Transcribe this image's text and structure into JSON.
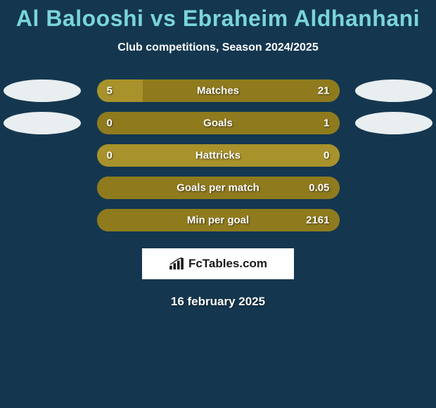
{
  "title": "Al Balooshi vs Ebraheim Aldhanhani",
  "subtitle": "Club competitions, Season 2024/2025",
  "date": "16 february 2025",
  "logo_text": "FcTables.com",
  "colors": {
    "background": "#14374f",
    "title": "#7ad5d8",
    "bar_base": "#a8922b",
    "bar_olive_dark": "#8f7b1e",
    "ellipse_white": "#e9eef0",
    "text_white": "#ffffff"
  },
  "rows": [
    {
      "label": "Matches",
      "left_val": "5",
      "right_val": "21",
      "left_pct": 19,
      "right_pct": 81,
      "left_fill": "#a8922b",
      "right_fill": "#8f7b1e",
      "show_ellipses": true,
      "ellipse_left_color": "#e9eef0",
      "ellipse_right_color": "#e9eef0"
    },
    {
      "label": "Goals",
      "left_val": "0",
      "right_val": "1",
      "left_pct": 0,
      "right_pct": 100,
      "left_fill": "#a8922b",
      "right_fill": "#8f7b1e",
      "show_ellipses": true,
      "ellipse_left_color": "#e9eef0",
      "ellipse_right_color": "#e9eef0"
    },
    {
      "label": "Hattricks",
      "left_val": "0",
      "right_val": "0",
      "left_pct": 50,
      "right_pct": 50,
      "left_fill": "#a8922b",
      "right_fill": "#a8922b",
      "show_ellipses": false
    },
    {
      "label": "Goals per match",
      "left_val": "",
      "right_val": "0.05",
      "left_pct": 0,
      "right_pct": 100,
      "left_fill": "#a8922b",
      "right_fill": "#8f7b1e",
      "show_ellipses": false
    },
    {
      "label": "Min per goal",
      "left_val": "",
      "right_val": "2161",
      "left_pct": 0,
      "right_pct": 100,
      "left_fill": "#a8922b",
      "right_fill": "#8f7b1e",
      "show_ellipses": false
    }
  ]
}
